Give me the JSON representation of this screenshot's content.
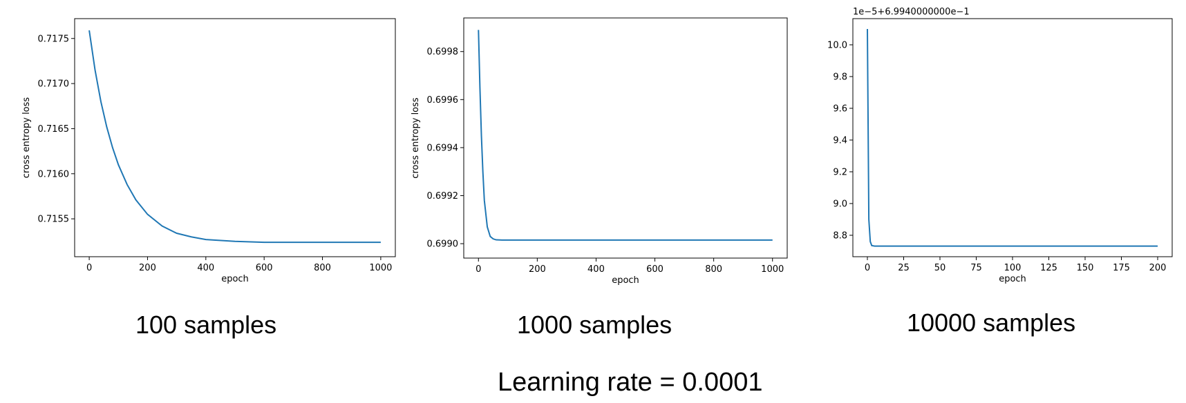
{
  "footer": "Learning rate = 0.0001",
  "chart_data": [
    {
      "type": "line",
      "caption": "100 samples",
      "xlabel": "epoch",
      "ylabel": "cross entropy loss",
      "offset_text": "",
      "xlim": [
        -50,
        1050
      ],
      "ylim": [
        0.71508,
        0.71772
      ],
      "xticks": [
        0,
        200,
        400,
        600,
        800,
        1000
      ],
      "xtick_labels": [
        "0",
        "200",
        "400",
        "600",
        "800",
        "1000"
      ],
      "yticks": [
        0.7155,
        0.716,
        0.7165,
        0.717,
        0.7175
      ],
      "ytick_labels": [
        "0.7155",
        "0.7160",
        "0.7165",
        "0.7170",
        "0.7175"
      ],
      "line_color": "#1f77b4",
      "series": [
        {
          "x": [
            0,
            20,
            40,
            60,
            80,
            100,
            130,
            160,
            200,
            250,
            300,
            350,
            400,
            500,
            600,
            700,
            800,
            1000
          ],
          "y": [
            0.71759,
            0.71715,
            0.7168,
            0.71652,
            0.71629,
            0.7161,
            0.71588,
            0.71571,
            0.71555,
            0.71542,
            0.71534,
            0.7153,
            0.71527,
            0.71525,
            0.71524,
            0.71524,
            0.71524,
            0.71524
          ]
        }
      ]
    },
    {
      "type": "line",
      "caption": "1000 samples",
      "xlabel": "epoch",
      "ylabel": "cross entropy loss",
      "offset_text": "",
      "xlim": [
        -50,
        1050
      ],
      "ylim": [
        0.69894,
        0.69994
      ],
      "xticks": [
        0,
        200,
        400,
        600,
        800,
        1000
      ],
      "xtick_labels": [
        "0",
        "200",
        "400",
        "600",
        "800",
        "1000"
      ],
      "yticks": [
        0.699,
        0.6992,
        0.6994,
        0.6996,
        0.6998
      ],
      "ytick_labels": [
        "0.6990",
        "0.6992",
        "0.6994",
        "0.6996",
        "0.6998"
      ],
      "line_color": "#1f77b4",
      "series": [
        {
          "x": [
            0,
            5,
            10,
            15,
            20,
            30,
            40,
            50,
            60,
            80,
            100,
            200,
            400,
            600,
            800,
            1000
          ],
          "y": [
            0.69989,
            0.69965,
            0.69945,
            0.6993,
            0.69918,
            0.69907,
            0.69903,
            0.69902,
            0.699016,
            0.699015,
            0.699015,
            0.699015,
            0.699015,
            0.699015,
            0.699015,
            0.699015
          ]
        }
      ]
    },
    {
      "type": "line",
      "caption": "10000 samples",
      "xlabel": "epoch",
      "ylabel": "",
      "offset_text": "1e−5+6.9940000000e−1",
      "xlim": [
        -10,
        210
      ],
      "ylim": [
        8.665,
        10.165
      ],
      "xticks": [
        0,
        25,
        50,
        75,
        100,
        125,
        150,
        175,
        200
      ],
      "xtick_labels": [
        "0",
        "25",
        "50",
        "75",
        "100",
        "125",
        "150",
        "175",
        "200"
      ],
      "yticks": [
        8.8,
        9.0,
        9.2,
        9.4,
        9.6,
        9.8,
        10.0
      ],
      "ytick_labels": [
        "8.8",
        "9.0",
        "9.2",
        "9.4",
        "9.6",
        "9.8",
        "10.0"
      ],
      "line_color": "#1f77b4",
      "series": [
        {
          "x": [
            0,
            1,
            2,
            3,
            5,
            10,
            50,
            100,
            150,
            200
          ],
          "y": [
            10.1,
            8.9,
            8.76,
            8.735,
            8.732,
            8.732,
            8.732,
            8.732,
            8.732,
            8.732
          ]
        }
      ]
    }
  ]
}
